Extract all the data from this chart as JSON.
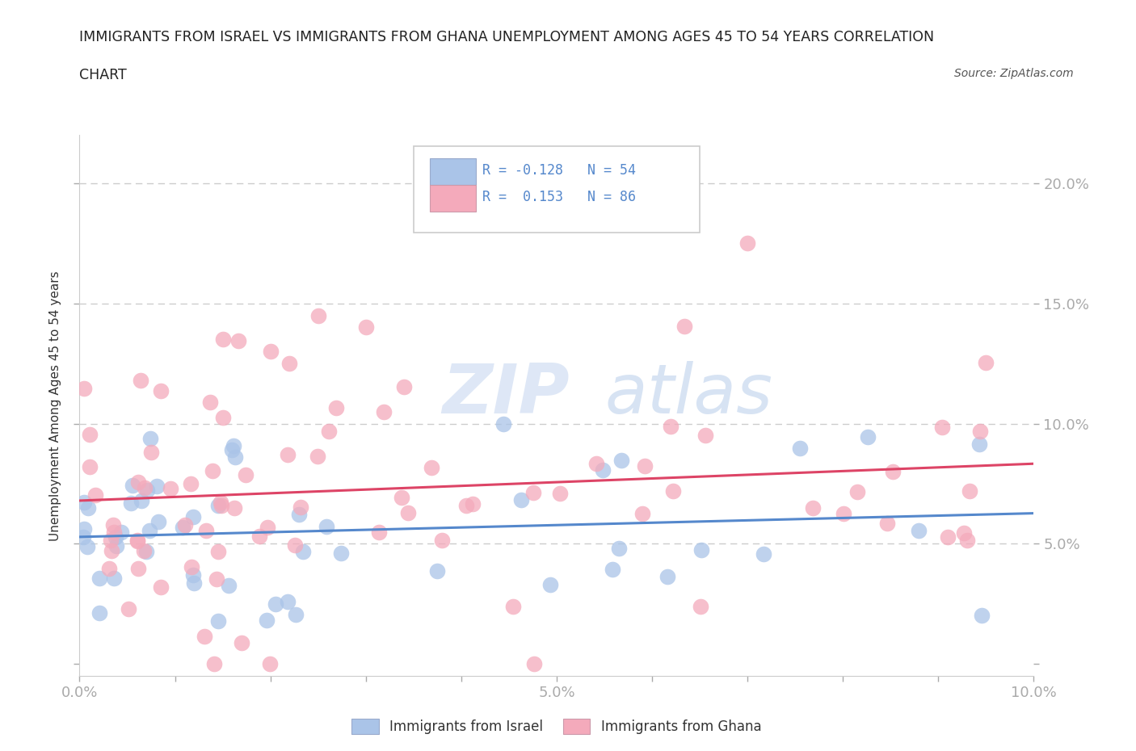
{
  "title_line1": "IMMIGRANTS FROM ISRAEL VS IMMIGRANTS FROM GHANA UNEMPLOYMENT AMONG AGES 45 TO 54 YEARS CORRELATION",
  "title_line2": "CHART",
  "source_text": "Source: ZipAtlas.com",
  "ylabel": "Unemployment Among Ages 45 to 54 years",
  "xlim": [
    0.0,
    0.1
  ],
  "ylim": [
    -0.005,
    0.22
  ],
  "y_ticks": [
    0.0,
    0.05,
    0.1,
    0.15,
    0.2
  ],
  "y_tick_labels_right": [
    "",
    "5.0%",
    "10.0%",
    "15.0%",
    "20.0%"
  ],
  "x_tick_positions": [
    0.0,
    0.01,
    0.02,
    0.03,
    0.04,
    0.05,
    0.06,
    0.07,
    0.08,
    0.09,
    0.1
  ],
  "x_tick_labels": [
    "0.0%",
    "",
    "",
    "",
    "",
    "5.0%",
    "",
    "",
    "",
    "",
    "10.0%"
  ],
  "israel_color": "#aac4e8",
  "ghana_color": "#f4aabb",
  "israel_line_color": "#5588cc",
  "ghana_line_color": "#dd4466",
  "israel_R": -0.128,
  "israel_N": 54,
  "ghana_R": 0.153,
  "ghana_N": 86,
  "legend_israel_label": "Immigrants from Israel",
  "legend_ghana_label": "Immigrants from Ghana",
  "background_color": "#ffffff",
  "grid_color": "#cccccc",
  "watermark_zip": "ZIP",
  "watermark_atlas": "atlas",
  "title_color": "#222222",
  "axis_label_color": "#5588cc",
  "ylabel_color": "#333333"
}
